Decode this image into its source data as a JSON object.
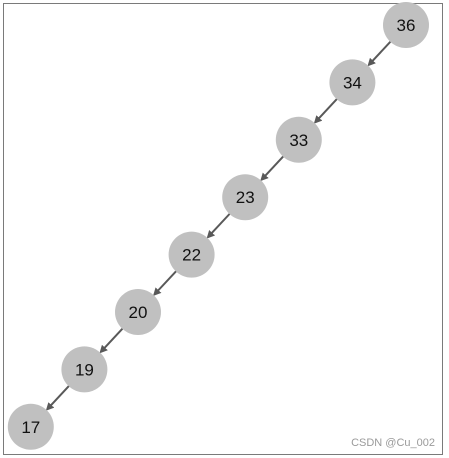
{
  "diagram": {
    "type": "skewed-tree",
    "node_fill": "#c0c0c0",
    "edge_color": "#595959",
    "nodes": [
      "36",
      "34",
      "33",
      "23",
      "22",
      "20",
      "19",
      "17"
    ],
    "edges": [
      [
        "36",
        "34"
      ],
      [
        "34",
        "33"
      ],
      [
        "33",
        "23"
      ],
      [
        "23",
        "22"
      ],
      [
        "22",
        "20"
      ],
      [
        "20",
        "19"
      ],
      [
        "19",
        "17"
      ]
    ]
  },
  "watermark": "CSDN @Cu_002"
}
